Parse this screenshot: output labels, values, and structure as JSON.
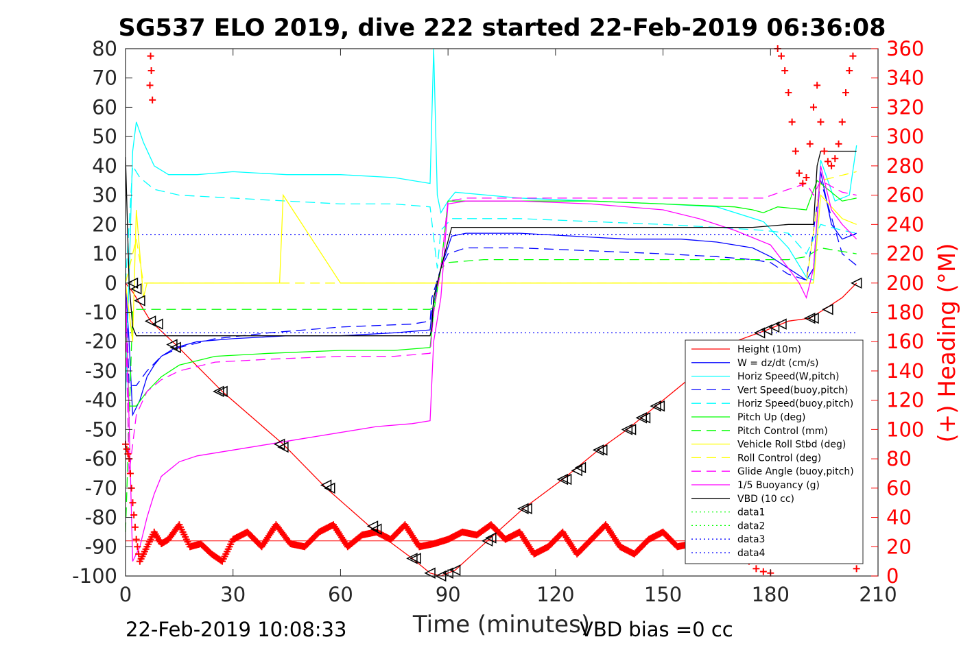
{
  "chart_data": {
    "type": "line",
    "title": "SG537 ELO 2019, dive 222 started 22-Feb-2019 06:36:08",
    "xlabel": "Time (minutes)",
    "ylabel": "",
    "ylabel_right": "(+) Heading (°M)",
    "xlim": [
      0,
      210
    ],
    "ylim": [
      -100,
      80
    ],
    "ylim_right": [
      0,
      360
    ],
    "x_ticks": [
      "0",
      "30",
      "60",
      "90",
      "120",
      "150",
      "180",
      "210"
    ],
    "y_ticks": [
      "80",
      "70",
      "60",
      "50",
      "40",
      "30",
      "20",
      "10",
      "0",
      "-10",
      "-20",
      "-30",
      "-40",
      "-50",
      "-60",
      "-70",
      "-80",
      "-90",
      "-100"
    ],
    "y_ticks_right": [
      "360",
      "340",
      "320",
      "300",
      "280",
      "260",
      "240",
      "220",
      "200",
      "180",
      "160",
      "140",
      "120",
      "100",
      "80",
      "60",
      "40",
      "20",
      "0"
    ],
    "footer_left": "22-Feb-2019 10:08:33",
    "footer_right": "VBD bias =0 cc",
    "legend_position": "lower-right",
    "colors": {
      "red": "#ff0000",
      "blue": "#0000ff",
      "cyan": "#00ffff",
      "green": "#00ff00",
      "yellow": "#ffff00",
      "magenta": "#ff00ff",
      "black": "#000000",
      "navy": "#00008b"
    },
    "series": [
      {
        "name": "Height (10m)",
        "color": "#ff0000",
        "style": "solid",
        "x": [
          0,
          2,
          7,
          14,
          27,
          44,
          56,
          69,
          80,
          85,
          88,
          92,
          101,
          111,
          122,
          132,
          140,
          148,
          160,
          170,
          179,
          185,
          191,
          195,
          200,
          204
        ],
        "y": [
          0,
          -3,
          -13,
          -21,
          -37,
          -55,
          -70,
          -84,
          -94,
          -99,
          -100,
          -98,
          -88,
          -77,
          -67,
          -57,
          -50,
          -42,
          -30,
          -20,
          -16,
          -13,
          -12,
          -9,
          -5,
          0
        ]
      },
      {
        "name": "W = dz/dt (cm/s)",
        "color": "#0000ff",
        "style": "solid",
        "x": [
          0,
          1,
          2,
          4,
          6,
          8,
          10,
          14,
          20,
          30,
          45,
          60,
          75,
          85,
          85.5,
          88,
          91,
          95,
          110,
          125,
          140,
          155,
          165,
          175,
          180,
          185,
          190,
          192,
          194,
          197,
          200,
          204
        ],
        "y": [
          0,
          -20,
          -45,
          -40,
          -32,
          -28,
          -25,
          -22,
          -20,
          -19,
          -18,
          -18,
          -17,
          -16,
          -10,
          5,
          16,
          17,
          17,
          16,
          15,
          15,
          14,
          12,
          9,
          5,
          1,
          5,
          38,
          20,
          15,
          17
        ]
      },
      {
        "name": "Horiz Speed(W,pitch)",
        "color": "#00ffff",
        "style": "solid",
        "x": [
          0,
          2,
          3,
          5,
          8,
          12,
          20,
          30,
          45,
          60,
          75,
          85,
          86,
          87,
          88,
          90,
          92,
          110,
          130,
          150,
          165,
          178,
          185,
          190,
          192,
          194,
          198,
          202,
          204
        ],
        "y": [
          -40,
          45,
          55,
          48,
          40,
          37,
          37,
          38,
          37,
          37,
          36,
          34,
          80,
          30,
          24,
          28,
          31,
          29,
          28,
          27,
          26,
          21,
          12,
          2,
          1,
          42,
          28,
          30,
          47
        ]
      },
      {
        "name": "Vert Speed(buoy,pitch)",
        "color": "#0000ff",
        "style": "dashed",
        "x": [
          0,
          1,
          3,
          6,
          10,
          15,
          25,
          40,
          60,
          80,
          85,
          85.5,
          88,
          90,
          95,
          110,
          130,
          150,
          165,
          175,
          180,
          185,
          190,
          194,
          200,
          204
        ],
        "y": [
          0,
          -35,
          -35,
          -30,
          -25,
          -22,
          -19,
          -17,
          -15,
          -14,
          -13,
          -5,
          5,
          10,
          12,
          12,
          11,
          10,
          9,
          8,
          7,
          3,
          1,
          35,
          10,
          6
        ]
      },
      {
        "name": "Horiz Speed(buoy,pitch)",
        "color": "#00ffff",
        "style": "dashed",
        "x": [
          0,
          2,
          4,
          8,
          15,
          30,
          45,
          60,
          75,
          85,
          87,
          88,
          91,
          110,
          130,
          150,
          165,
          178,
          185,
          190,
          194,
          200,
          204
        ],
        "y": [
          0,
          40,
          36,
          32,
          30,
          29,
          28,
          27,
          27,
          26,
          5,
          18,
          22,
          22,
          21,
          20,
          19,
          18,
          17,
          10,
          20,
          18,
          17
        ]
      },
      {
        "name": "Pitch Up (deg)",
        "color": "#00ff00",
        "style": "solid",
        "x": [
          0,
          1,
          3,
          6,
          10,
          15,
          25,
          40,
          60,
          75,
          85,
          86,
          88,
          90,
          95,
          110,
          130,
          150,
          170,
          175,
          178,
          182,
          190,
          193,
          200,
          204
        ],
        "y": [
          -10,
          -42,
          -42,
          -37,
          -32,
          -28,
          -25,
          -24,
          -23,
          -23,
          -22,
          -10,
          5,
          28,
          28,
          28,
          28,
          27,
          26,
          25,
          24,
          26,
          25,
          35,
          28,
          29
        ]
      },
      {
        "name": "Pitch Control (mm)",
        "color": "#00ff00",
        "style": "dashed",
        "x": [
          0,
          2,
          4,
          85,
          86,
          88,
          90,
          100,
          120,
          140,
          160,
          175,
          180,
          185,
          190,
          194,
          204
        ],
        "y": [
          -85,
          -9,
          -9,
          -9,
          -8,
          5,
          7,
          8,
          8,
          8,
          8,
          8,
          8,
          8,
          9,
          12,
          10
        ]
      },
      {
        "name": "Vehicle Roll Stbd (deg)",
        "color": "#ffff00",
        "style": "solid",
        "x": [
          0,
          2,
          3,
          5,
          6,
          10,
          20,
          40,
          43,
          44,
          60,
          85,
          88,
          100,
          120,
          140,
          160,
          175,
          178,
          185,
          190,
          192,
          194,
          200,
          204
        ],
        "y": [
          0,
          -20,
          25,
          -5,
          0,
          0,
          0,
          0,
          0,
          30,
          0,
          0,
          0,
          0,
          0,
          0,
          0,
          0,
          0,
          0,
          0,
          0,
          30,
          22,
          20
        ]
      },
      {
        "name": "Roll Control (deg)",
        "color": "#ffff00",
        "style": "dashed",
        "x": [
          0,
          3,
          5,
          10,
          20,
          40,
          60,
          85,
          88,
          100,
          120,
          140,
          160,
          175,
          180,
          185,
          190,
          194,
          204
        ],
        "y": [
          0,
          15,
          0,
          0,
          0,
          0,
          0,
          0,
          0,
          0,
          0,
          0,
          0,
          0,
          0,
          0,
          0,
          35,
          38
        ]
      },
      {
        "name": "Glide Angle (buoy,pitch)",
        "color": "#ff00ff",
        "style": "dashed",
        "x": [
          0,
          1,
          3,
          6,
          10,
          15,
          25,
          40,
          60,
          75,
          85,
          86,
          88,
          90,
          95,
          110,
          130,
          150,
          170,
          178,
          185,
          190,
          192,
          194,
          200,
          204
        ],
        "y": [
          -10,
          -65,
          -45,
          -37,
          -33,
          -30,
          -27,
          -26,
          -25,
          -25,
          -24,
          -10,
          5,
          28,
          29,
          29,
          29,
          29,
          29,
          29,
          32,
          34,
          30,
          35,
          31,
          30
        ]
      },
      {
        "name": "1/5 Buoyancy (g)",
        "color": "#ff00ff",
        "style": "solid",
        "x": [
          0,
          2,
          4,
          6,
          8,
          10,
          15,
          20,
          30,
          40,
          50,
          60,
          70,
          80,
          85,
          86,
          88,
          90,
          95,
          110,
          130,
          150,
          160,
          170,
          180,
          185,
          188,
          190,
          192,
          194,
          197,
          200,
          204
        ],
        "y": [
          0,
          -95,
          -90,
          -80,
          -72,
          -66,
          -61,
          -59,
          -57,
          -55,
          -53,
          -51,
          -49,
          -48,
          -47,
          -20,
          -5,
          27,
          28,
          28,
          27,
          25,
          22,
          18,
          13,
          5,
          0,
          -5,
          5,
          40,
          25,
          20,
          15
        ]
      },
      {
        "name": "VBD (10 cc)",
        "color": "#000000",
        "style": "solid",
        "x": [
          0,
          1,
          2,
          3,
          85,
          85.5,
          86,
          88,
          91,
          95,
          120,
          150,
          175,
          185,
          190,
          191,
          192,
          193,
          194,
          204
        ],
        "y": [
          43,
          0,
          -15,
          -18,
          -18,
          -15,
          -5,
          5,
          19,
          19,
          19,
          19,
          19,
          20,
          20,
          20,
          20,
          40,
          45,
          45
        ]
      },
      {
        "name": "data1",
        "color": "#00ff00",
        "style": "dotted",
        "x": [],
        "y": []
      },
      {
        "name": "data2",
        "color": "#00ff00",
        "style": "dotted",
        "x": [],
        "y": []
      },
      {
        "name": "data3",
        "color": "#0000ff",
        "style": "dotted",
        "x": [
          0,
          204
        ],
        "y": [
          16.5,
          16.5
        ]
      },
      {
        "name": "data4",
        "color": "#0000ff",
        "style": "dotted",
        "x": [
          0,
          204
        ],
        "y": [
          -17,
          -17
        ]
      }
    ],
    "hline": {
      "y": -88,
      "x": [
        0,
        204
      ],
      "color": "#ff0000"
    },
    "heading": {
      "axis": "right",
      "color": "#ff0000",
      "x": [
        0,
        1,
        2,
        3,
        4,
        5,
        6,
        8,
        10,
        12,
        15,
        18,
        21,
        24,
        27,
        30,
        34,
        38,
        42,
        46,
        50,
        54,
        58,
        62,
        66,
        70,
        74,
        78,
        82,
        86,
        90,
        94,
        98,
        102,
        106,
        110,
        114,
        118,
        122,
        126,
        130,
        134,
        138,
        142,
        146,
        150,
        154,
        158,
        162,
        166,
        170,
        172
      ],
      "y": [
        90,
        80,
        50,
        25,
        10,
        15,
        20,
        30,
        22,
        25,
        35,
        20,
        22,
        15,
        10,
        25,
        30,
        20,
        35,
        22,
        20,
        30,
        35,
        20,
        28,
        30,
        25,
        35,
        20,
        22,
        25,
        30,
        28,
        35,
        25,
        30,
        15,
        20,
        30,
        15,
        25,
        35,
        20,
        15,
        25,
        30,
        20,
        22,
        18,
        30,
        15,
        10
      ]
    },
    "heading_marks": {
      "x": [
        7,
        7.2,
        6.8,
        7.5,
        174,
        176,
        178,
        180,
        182,
        183,
        184,
        185,
        186,
        187,
        188,
        189,
        190,
        191,
        192,
        193,
        194,
        195,
        196,
        197,
        198,
        199,
        200,
        201,
        202,
        203,
        204
      ],
      "y": [
        355,
        345,
        335,
        325,
        10,
        5,
        3,
        2,
        360,
        355,
        345,
        330,
        310,
        290,
        275,
        268,
        272,
        295,
        320,
        335,
        310,
        290,
        283,
        280,
        285,
        295,
        310,
        330,
        345,
        355,
        5
      ]
    },
    "triangles": {
      "x": [
        2,
        3,
        4,
        7,
        9,
        13,
        14,
        26,
        27,
        43,
        44,
        56,
        57,
        69,
        70,
        80,
        81,
        85,
        88,
        90,
        92,
        101,
        102,
        111,
        112,
        122,
        123,
        126,
        127,
        132,
        133,
        140,
        141,
        144,
        145,
        148,
        149,
        177,
        179,
        181,
        183,
        191,
        192,
        196,
        204
      ],
      "y": [
        0,
        -2,
        -6,
        -13,
        -14,
        -21,
        -22,
        -37,
        -37,
        -55,
        -56,
        -69,
        -70,
        -83,
        -84,
        -94,
        -94,
        -99,
        -100,
        -99,
        -98,
        -88,
        -87,
        -77,
        -77,
        -67,
        -67,
        -64,
        -63,
        -57,
        -57,
        -50,
        -50,
        -46,
        -46,
        -42,
        -42,
        -17,
        -16,
        -15,
        -14,
        -12,
        -12,
        -9,
        0
      ]
    }
  }
}
